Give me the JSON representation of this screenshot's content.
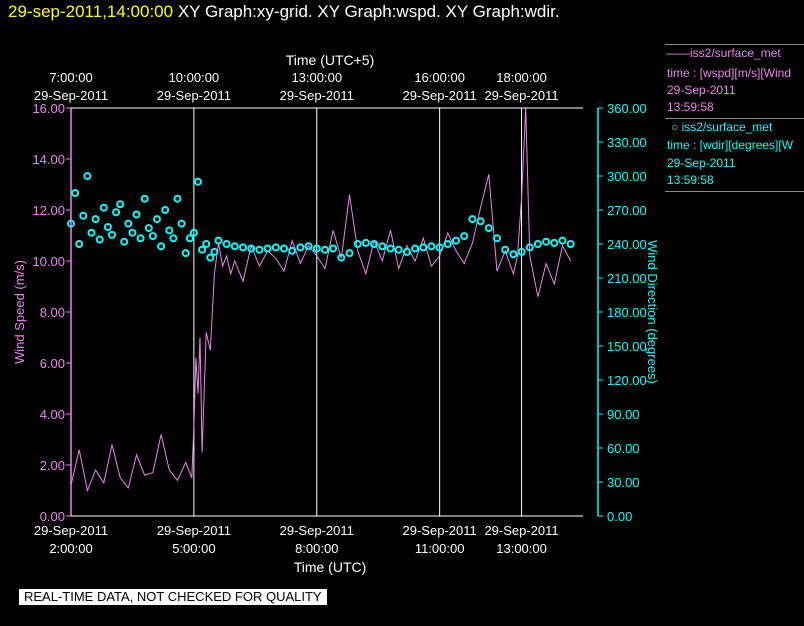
{
  "header": {
    "timestamp": "29-sep-2011,14:00:00",
    "titles": "XY Graph:xy-grid.  XY Graph:wspd.  XY Graph:wdir."
  },
  "legend": {
    "wspd": {
      "name": "iss2/surface_met",
      "desc": "time : [wspd][m/s][Wind",
      "date": "29-Sep-2011",
      "time": "13:59:58"
    },
    "wdir": {
      "name": "iss2/surface_met",
      "desc": "time : [wdir][degrees][W",
      "date": "29-Sep-2011",
      "time": "13:59:58"
    }
  },
  "qc_notice": "REAL-TIME DATA, NOT CHECKED FOR QUALITY",
  "colors": {
    "wspd": "#ee82ee",
    "wdir": "#00ffff",
    "grid": "#ffffff"
  },
  "chart_data": {
    "type": "line",
    "xlabel_bottom": "Time (UTC)",
    "xlabel_top": "Time (UTC+5)",
    "ylabel_left": "Wind Speed (m/s)",
    "ylabel_right": "Wind Direction (degrees)",
    "xlim": [
      0,
      12.5
    ],
    "ylim_left": [
      0,
      16
    ],
    "ylim_right": [
      0,
      360
    ],
    "grid": true,
    "bottom_ticks": [
      {
        "x": 0,
        "date": "29-Sep-2011",
        "time": "2:00:00"
      },
      {
        "x": 3,
        "date": "29-Sep-2011",
        "time": "5:00:00"
      },
      {
        "x": 6,
        "date": "29-Sep-2011",
        "time": "8:00:00"
      },
      {
        "x": 9,
        "date": "29-Sep-2011",
        "time": "11:00:00"
      },
      {
        "x": 11,
        "date": "29-Sep-2011",
        "time": "13:00:00"
      }
    ],
    "top_ticks": [
      {
        "x": 0,
        "date": "29-Sep-2011",
        "time": "7:00:00"
      },
      {
        "x": 3,
        "date": "29-Sep-2011",
        "time": "10:00:00"
      },
      {
        "x": 6,
        "date": "29-Sep-2011",
        "time": "13:00:00"
      },
      {
        "x": 9,
        "date": "29-Sep-2011",
        "time": "16:00:00"
      },
      {
        "x": 11,
        "date": "29-Sep-2011",
        "time": "18:00:00"
      }
    ],
    "left_ticks": [
      "0.00",
      "2.00",
      "4.00",
      "6.00",
      "8.00",
      "10.00",
      "12.00",
      "14.00",
      "16.00"
    ],
    "right_ticks": [
      "0.00",
      "30.00",
      "60.00",
      "90.00",
      "120.00",
      "150.00",
      "180.00",
      "210.00",
      "240.00",
      "270.00",
      "300.00",
      "330.00",
      "360.00"
    ],
    "series": [
      {
        "name": "iss2/surface_met",
        "axis": "left",
        "style": "line",
        "x": [
          0,
          0.2,
          0.4,
          0.6,
          0.8,
          1.0,
          1.2,
          1.4,
          1.6,
          1.8,
          2.0,
          2.2,
          2.4,
          2.6,
          2.8,
          2.95,
          3.0,
          3.05,
          3.1,
          3.15,
          3.2,
          3.3,
          3.4,
          3.5,
          3.6,
          3.7,
          3.8,
          3.9,
          4.0,
          4.2,
          4.4,
          4.6,
          4.8,
          5.0,
          5.2,
          5.4,
          5.6,
          5.8,
          6.0,
          6.2,
          6.4,
          6.6,
          6.8,
          7.0,
          7.2,
          7.4,
          7.6,
          7.8,
          8.0,
          8.2,
          8.4,
          8.6,
          8.8,
          9.0,
          9.2,
          9.4,
          9.6,
          9.8,
          10.0,
          10.2,
          10.4,
          10.6,
          10.8,
          10.9,
          11.0,
          11.1,
          11.2,
          11.4,
          11.6,
          11.8,
          12.0,
          12.2
        ],
        "values": [
          1.2,
          2.6,
          1.0,
          1.8,
          1.3,
          2.8,
          1.5,
          1.1,
          2.4,
          1.6,
          1.7,
          3.2,
          1.8,
          1.4,
          2.1,
          1.5,
          3.5,
          6.2,
          4.8,
          7.0,
          2.5,
          7.2,
          6.5,
          9.5,
          10.7,
          9.8,
          10.2,
          9.5,
          10.0,
          9.2,
          10.6,
          9.8,
          10.4,
          10.1,
          9.6,
          10.8,
          9.9,
          10.6,
          10.2,
          9.7,
          11.2,
          10.1,
          12.6,
          10.4,
          9.5,
          10.8,
          10.0,
          11.2,
          9.7,
          10.6,
          10.0,
          10.9,
          9.8,
          10.2,
          11.1,
          10.4,
          9.9,
          10.7,
          12.1,
          13.4,
          9.6,
          10.4,
          9.5,
          10.2,
          12.5,
          16.0,
          10.2,
          8.6,
          9.9,
          9.1,
          10.6,
          10.0
        ]
      },
      {
        "name": "iss2/surface_met",
        "axis": "right",
        "style": "markers",
        "x": [
          0,
          0.1,
          0.2,
          0.3,
          0.4,
          0.5,
          0.6,
          0.7,
          0.8,
          0.9,
          1.0,
          1.1,
          1.2,
          1.3,
          1.4,
          1.5,
          1.6,
          1.7,
          1.8,
          1.9,
          2.0,
          2.1,
          2.2,
          2.3,
          2.4,
          2.5,
          2.6,
          2.7,
          2.8,
          2.9,
          3.0,
          3.1,
          3.2,
          3.3,
          3.4,
          3.5,
          3.6,
          3.8,
          4.0,
          4.2,
          4.4,
          4.6,
          4.8,
          5.0,
          5.2,
          5.4,
          5.6,
          5.8,
          6.0,
          6.2,
          6.4,
          6.6,
          6.8,
          7.0,
          7.2,
          7.4,
          7.6,
          7.8,
          8.0,
          8.2,
          8.4,
          8.6,
          8.8,
          9.0,
          9.2,
          9.4,
          9.6,
          9.8,
          10.0,
          10.2,
          10.4,
          10.6,
          10.8,
          11.0,
          11.2,
          11.4,
          11.6,
          11.8,
          12.0,
          12.2
        ],
        "values": [
          258,
          285,
          240,
          265,
          300,
          250,
          262,
          244,
          272,
          255,
          248,
          268,
          275,
          242,
          258,
          250,
          266,
          245,
          280,
          254,
          247,
          262,
          238,
          270,
          252,
          245,
          280,
          258,
          232,
          245,
          250,
          295,
          235,
          240,
          228,
          233,
          243,
          240,
          238,
          237,
          236,
          235,
          236,
          237,
          236,
          234,
          237,
          238,
          236,
          235,
          236,
          228,
          232,
          240,
          241,
          240,
          238,
          236,
          235,
          233,
          236,
          237,
          238,
          237,
          240,
          243,
          247,
          262,
          260,
          254,
          245,
          235,
          231,
          233,
          237,
          240,
          242,
          241,
          243,
          240
        ]
      }
    ]
  }
}
